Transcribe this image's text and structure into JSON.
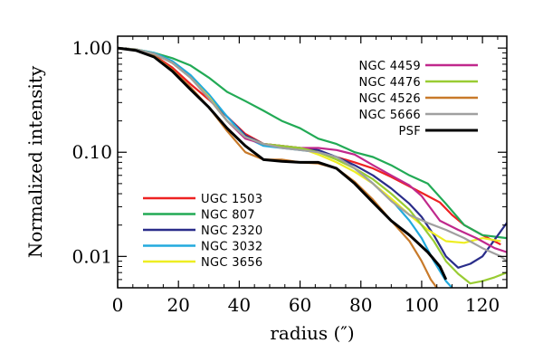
{
  "chart_data": {
    "type": "line",
    "title": "",
    "xlabel": "radius (″)",
    "ylabel": "Normalized intensity",
    "xlim": [
      0,
      128
    ],
    "ylim": [
      0.005,
      1.3
    ],
    "yscale": "log",
    "x_ticks": [
      0,
      20,
      40,
      60,
      80,
      100,
      120
    ],
    "x_tick_labels": [
      "0",
      "20",
      "40",
      "60",
      "80",
      "100",
      "120"
    ],
    "y_ticks": [
      0.01,
      0.1,
      1.0
    ],
    "y_tick_labels": [
      "0.01",
      "0.10",
      "1.00"
    ],
    "grid": false,
    "legends": [
      {
        "placement": "top-right",
        "series": [
          "NGC 4459",
          "NGC 4476",
          "NGC 4526",
          "NGC 5666",
          "PSF"
        ]
      },
      {
        "placement": "bottom-left",
        "series": [
          "UGC 1503",
          "NGC 807",
          "NGC 2320",
          "NGC 3032",
          "NGC 3656"
        ]
      }
    ],
    "series": [
      {
        "name": "UGC 1503",
        "color": "#ee2222",
        "x": [
          0,
          6,
          12,
          18,
          24,
          30,
          36,
          42,
          48,
          54,
          60,
          66,
          72,
          78,
          84,
          90,
          96,
          102,
          106,
          110,
          114,
          120,
          126
        ],
        "y": [
          1.0,
          0.96,
          0.85,
          0.65,
          0.45,
          0.32,
          0.22,
          0.15,
          0.12,
          0.115,
          0.11,
          0.1,
          0.09,
          0.08,
          0.07,
          0.058,
          0.047,
          0.038,
          0.033,
          0.025,
          0.02,
          0.016,
          0.013
        ]
      },
      {
        "name": "NGC 807",
        "color": "#22aa55",
        "x": [
          0,
          6,
          12,
          18,
          24,
          30,
          36,
          42,
          48,
          54,
          60,
          66,
          72,
          78,
          84,
          90,
          96,
          102,
          108,
          114,
          120,
          128
        ],
        "y": [
          1.0,
          0.97,
          0.9,
          0.8,
          0.68,
          0.52,
          0.38,
          0.31,
          0.25,
          0.2,
          0.17,
          0.135,
          0.12,
          0.1,
          0.09,
          0.075,
          0.06,
          0.05,
          0.032,
          0.02,
          0.016,
          0.015
        ]
      },
      {
        "name": "NGC 2320",
        "color": "#2a2d8a",
        "x": [
          0,
          6,
          12,
          18,
          24,
          30,
          36,
          42,
          48,
          54,
          60,
          66,
          72,
          78,
          84,
          90,
          96,
          100,
          104,
          108,
          112,
          116,
          120,
          124,
          128
        ],
        "y": [
          1.0,
          0.97,
          0.88,
          0.72,
          0.52,
          0.34,
          0.22,
          0.145,
          0.12,
          0.115,
          0.11,
          0.105,
          0.09,
          0.075,
          0.06,
          0.045,
          0.032,
          0.024,
          0.016,
          0.01,
          0.0078,
          0.0085,
          0.01,
          0.0145,
          0.021
        ]
      },
      {
        "name": "NGC 3032",
        "color": "#22aadd",
        "x": [
          0,
          6,
          12,
          18,
          24,
          30,
          36,
          42,
          48,
          54,
          60,
          66,
          72,
          78,
          84,
          90,
          96,
          100,
          104,
          108,
          110
        ],
        "y": [
          1.0,
          0.97,
          0.9,
          0.75,
          0.55,
          0.36,
          0.22,
          0.14,
          0.115,
          0.11,
          0.105,
          0.1,
          0.09,
          0.07,
          0.05,
          0.035,
          0.022,
          0.015,
          0.009,
          0.0058,
          0.005
        ]
      },
      {
        "name": "NGC 3656",
        "color": "#eeee22",
        "x": [
          0,
          6,
          12,
          18,
          24,
          30,
          36,
          42,
          48,
          54,
          60,
          66,
          72,
          78,
          84,
          90,
          96,
          102,
          108,
          114,
          120,
          126
        ],
        "y": [
          1.0,
          0.97,
          0.88,
          0.72,
          0.52,
          0.34,
          0.2,
          0.14,
          0.12,
          0.115,
          0.11,
          0.095,
          0.08,
          0.065,
          0.05,
          0.036,
          0.025,
          0.018,
          0.014,
          0.0135,
          0.015,
          0.014
        ]
      },
      {
        "name": "NGC 4459",
        "color": "#c0288c",
        "x": [
          0,
          6,
          12,
          18,
          24,
          30,
          36,
          42,
          48,
          54,
          60,
          66,
          72,
          78,
          84,
          90,
          96,
          100,
          106,
          112,
          118,
          124,
          128
        ],
        "y": [
          1.0,
          0.97,
          0.88,
          0.72,
          0.52,
          0.33,
          0.2,
          0.135,
          0.12,
          0.115,
          0.11,
          0.11,
          0.105,
          0.095,
          0.075,
          0.06,
          0.048,
          0.038,
          0.022,
          0.018,
          0.015,
          0.012,
          0.011
        ]
      },
      {
        "name": "NGC 4476",
        "color": "#99cc33",
        "x": [
          0,
          6,
          12,
          18,
          24,
          30,
          36,
          42,
          48,
          54,
          60,
          66,
          72,
          78,
          84,
          90,
          96,
          100,
          104,
          108,
          112,
          116,
          120,
          124,
          128
        ],
        "y": [
          1.0,
          0.97,
          0.88,
          0.72,
          0.52,
          0.33,
          0.2,
          0.14,
          0.12,
          0.115,
          0.11,
          0.1,
          0.085,
          0.07,
          0.055,
          0.04,
          0.028,
          0.02,
          0.014,
          0.009,
          0.0068,
          0.0055,
          0.0058,
          0.0063,
          0.007
        ]
      },
      {
        "name": "NGC 4526",
        "color": "#c87a2a",
        "x": [
          0,
          6,
          12,
          18,
          24,
          30,
          36,
          42,
          48,
          54,
          60,
          66,
          72,
          78,
          84,
          90,
          96,
          100,
          103,
          105
        ],
        "y": [
          1.0,
          0.96,
          0.84,
          0.62,
          0.42,
          0.27,
          0.16,
          0.1,
          0.085,
          0.085,
          0.08,
          0.078,
          0.07,
          0.052,
          0.035,
          0.022,
          0.014,
          0.009,
          0.006,
          0.005
        ]
      },
      {
        "name": "NGC 5666",
        "color": "#a0a0a0",
        "x": [
          0,
          6,
          12,
          18,
          24,
          30,
          36,
          42,
          48,
          54,
          60,
          66,
          72,
          78,
          84,
          90,
          96,
          102,
          108,
          114,
          120,
          126,
          128
        ],
        "y": [
          1.0,
          0.97,
          0.88,
          0.72,
          0.52,
          0.33,
          0.2,
          0.14,
          0.12,
          0.11,
          0.105,
          0.1,
          0.09,
          0.07,
          0.05,
          0.034,
          0.025,
          0.021,
          0.018,
          0.015,
          0.012,
          0.01,
          0.009
        ]
      },
      {
        "name": "PSF",
        "color": "#000000",
        "x": [
          0,
          6,
          12,
          18,
          24,
          30,
          36,
          42,
          48,
          54,
          60,
          66,
          72,
          78,
          84,
          90,
          96,
          102,
          106,
          108
        ],
        "y": [
          1.0,
          0.95,
          0.82,
          0.6,
          0.4,
          0.27,
          0.17,
          0.115,
          0.085,
          0.082,
          0.08,
          0.08,
          0.07,
          0.05,
          0.033,
          0.022,
          0.016,
          0.011,
          0.008,
          0.006
        ]
      }
    ]
  }
}
